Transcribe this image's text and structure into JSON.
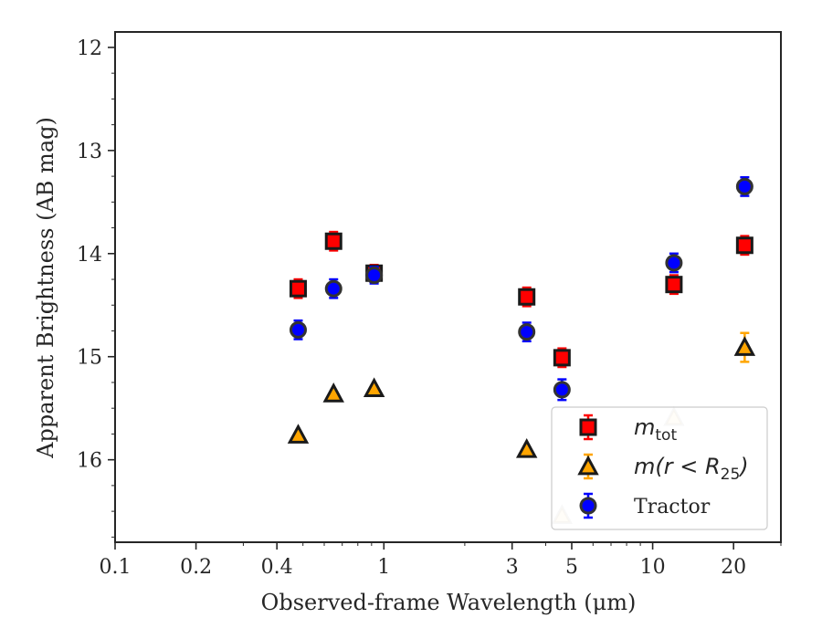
{
  "chart_data": {
    "type": "scatter",
    "title": "",
    "xlabel": "Observed-frame Wavelength (μm)",
    "ylabel": "Apparent Brightness (AB mag)",
    "xscale": "log",
    "xlim": [
      0.1,
      30
    ],
    "ylim": [
      16.8,
      11.85
    ],
    "y_inverted": true,
    "xticks": [
      {
        "value": 0.1,
        "label": "0.1"
      },
      {
        "value": 0.2,
        "label": "0.2"
      },
      {
        "value": 0.4,
        "label": "0.4"
      },
      {
        "value": 1,
        "label": "1"
      },
      {
        "value": 3,
        "label": "3"
      },
      {
        "value": 5,
        "label": "5"
      },
      {
        "value": 10,
        "label": "10"
      },
      {
        "value": 20,
        "label": "20"
      }
    ],
    "yticks": [
      {
        "value": 12,
        "label": "12"
      },
      {
        "value": 13,
        "label": "13"
      },
      {
        "value": 14,
        "label": "14"
      },
      {
        "value": 15,
        "label": "15"
      },
      {
        "value": 16,
        "label": "16"
      }
    ],
    "grid": false,
    "legend_position": "lower-right",
    "series": [
      {
        "name": "m_tot",
        "legend_label": {
          "base": "m",
          "sub": "tot"
        },
        "marker": "square",
        "face_color": "#ff0000",
        "edge_color": "#1a1a1a",
        "error_color": "#ff0000",
        "points": [
          {
            "x": 0.48,
            "y": 14.34,
            "err": 0.09
          },
          {
            "x": 0.65,
            "y": 13.88,
            "err": 0.09
          },
          {
            "x": 0.92,
            "y": 14.19,
            "err": 0.08
          },
          {
            "x": 3.4,
            "y": 14.42,
            "err": 0.09
          },
          {
            "x": 4.6,
            "y": 15.01,
            "err": 0.09
          },
          {
            "x": 12.0,
            "y": 14.3,
            "err": 0.09
          },
          {
            "x": 22.0,
            "y": 13.92,
            "err": 0.09
          }
        ]
      },
      {
        "name": "m(r < R_25)",
        "legend_label": {
          "base": "m(r < R",
          "sub": "25",
          "tail": ")"
        },
        "marker": "triangle",
        "face_color": "#ffa500",
        "edge_color": "#1a1a1a",
        "error_color": "#ffa500",
        "points": [
          {
            "x": 0.48,
            "y": 15.76,
            "err": 0.0
          },
          {
            "x": 0.65,
            "y": 15.36,
            "err": 0.0
          },
          {
            "x": 0.92,
            "y": 15.31,
            "err": 0.0
          },
          {
            "x": 3.4,
            "y": 15.9,
            "err": 0.0
          },
          {
            "x": 4.6,
            "y": 16.54,
            "err": 0.0,
            "faded": true
          },
          {
            "x": 12.0,
            "y": 15.59,
            "err": 0.0,
            "faded": true
          },
          {
            "x": 22.0,
            "y": 14.91,
            "err": 0.14
          }
        ]
      },
      {
        "name": "Tractor",
        "legend_label": {
          "text": "Tractor"
        },
        "marker": "circle",
        "face_color": "#0000ff",
        "edge_color": "#333333",
        "error_color": "#0000ff",
        "points": [
          {
            "x": 0.48,
            "y": 14.74,
            "err": 0.09
          },
          {
            "x": 0.65,
            "y": 14.34,
            "err": 0.09
          },
          {
            "x": 0.92,
            "y": 14.21,
            "err": 0.08
          },
          {
            "x": 3.4,
            "y": 14.76,
            "err": 0.09
          },
          {
            "x": 4.6,
            "y": 15.32,
            "err": 0.1
          },
          {
            "x": 12.0,
            "y": 14.09,
            "err": 0.09
          },
          {
            "x": 22.0,
            "y": 13.35,
            "err": 0.09
          }
        ]
      }
    ]
  }
}
